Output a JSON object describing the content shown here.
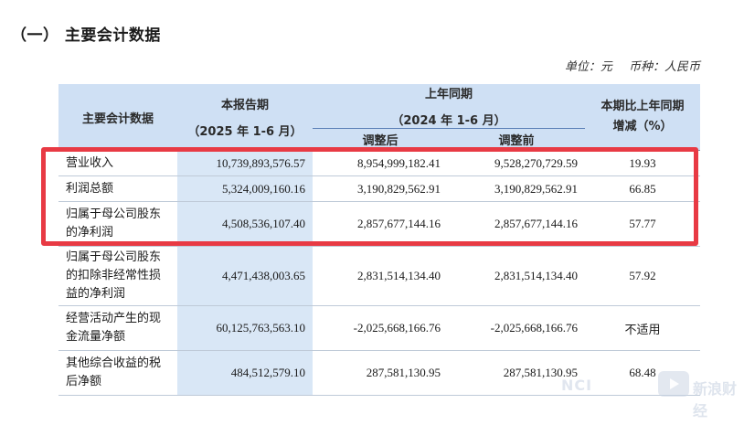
{
  "section_title": "（一） 主要会计数据",
  "unit": {
    "unit_label": "单位：元",
    "currency_label": "币种：人民币"
  },
  "table": {
    "header": {
      "item": "主要会计数据",
      "current_period": "本报告期",
      "current_period_sub": "（2025 年 1-6 月）",
      "prior_period": "上年同期",
      "prior_period_sub": "（2024 年 1-6 月）",
      "adjusted": "调整后",
      "before_adjustment": "调整前",
      "change": "本期比上年同期增减（%）"
    },
    "rows": [
      {
        "label": "营业收入",
        "current": "10,739,893,576.57",
        "adjusted": "8,954,999,182.41",
        "before": "9,528,270,729.59",
        "change": "19.93"
      },
      {
        "label": "利润总额",
        "current": "5,324,009,160.16",
        "adjusted": "3,190,829,562.91",
        "before": "3,190,829,562.91",
        "change": "66.85"
      },
      {
        "label": "归属于母公司股东的净利润",
        "current": "4,508,536,107.40",
        "adjusted": "2,857,677,144.16",
        "before": "2,857,677,144.16",
        "change": "57.77"
      },
      {
        "label": "归属于母公司股东的扣除非经常性损益的净利润",
        "current": "4,471,438,003.65",
        "adjusted": "2,831,514,134.40",
        "before": "2,831,514,134.40",
        "change": "57.92"
      },
      {
        "label": "经营活动产生的现金流量净额",
        "current": "60,125,763,563.10",
        "adjusted": "-2,025,668,166.76",
        "before": "-2,025,668,166.76",
        "change": "不适用"
      },
      {
        "label": "其他综合收益的税后净额",
        "current": "484,512,579.10",
        "adjusted": "287,581,130.95",
        "before": "287,581,130.95",
        "change": "68.48"
      }
    ]
  },
  "watermark": {
    "brand": "NCI",
    "name": "新浪财经"
  },
  "colors": {
    "header_bg": "#cfe0f4",
    "current_col_bg": "#d9e7f6",
    "highlight": "#e83a44"
  }
}
